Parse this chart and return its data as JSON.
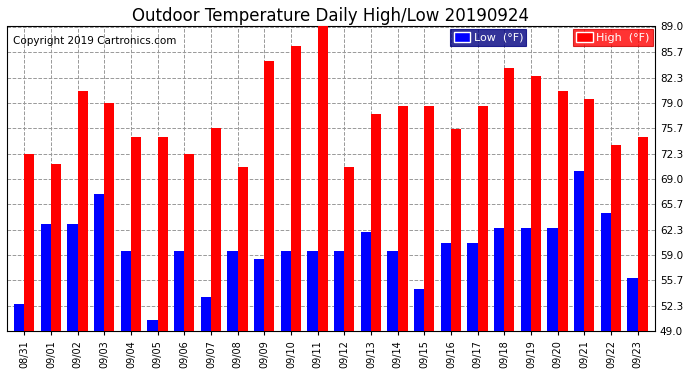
{
  "title": "Outdoor Temperature Daily High/Low 20190924",
  "copyright": "Copyright 2019 Cartronics.com",
  "dates": [
    "08/31",
    "09/01",
    "09/02",
    "09/03",
    "09/04",
    "09/05",
    "09/06",
    "09/07",
    "09/08",
    "09/09",
    "09/10",
    "09/11",
    "09/12",
    "09/13",
    "09/14",
    "09/15",
    "09/16",
    "09/17",
    "09/18",
    "09/19",
    "09/20",
    "09/21",
    "09/22",
    "09/23"
  ],
  "low": [
    52.5,
    63.0,
    63.0,
    67.0,
    59.5,
    50.5,
    59.5,
    53.5,
    59.5,
    58.5,
    59.5,
    59.5,
    59.5,
    62.0,
    59.5,
    54.5,
    60.5,
    60.5,
    62.5,
    62.5,
    62.5,
    70.0,
    64.5,
    56.0
  ],
  "high": [
    72.3,
    71.0,
    80.5,
    79.0,
    74.5,
    74.5,
    72.3,
    75.7,
    70.5,
    84.5,
    86.5,
    89.0,
    70.5,
    77.5,
    78.5,
    78.5,
    75.5,
    78.5,
    83.5,
    82.5,
    80.5,
    79.5,
    73.5,
    74.5
  ],
  "low_color": "#0000ff",
  "high_color": "#ff0000",
  "bg_color": "#ffffff",
  "plot_bg_color": "#ffffff",
  "grid_color": "#999999",
  "ylim_min": 49.0,
  "ylim_max": 89.0,
  "yticks": [
    49.0,
    52.3,
    55.7,
    59.0,
    62.3,
    65.7,
    69.0,
    72.3,
    75.7,
    79.0,
    82.3,
    85.7,
    89.0
  ],
  "title_fontsize": 12,
  "copyright_fontsize": 7.5,
  "legend_low_label": "Low  (°F)",
  "legend_high_label": "High  (°F)"
}
